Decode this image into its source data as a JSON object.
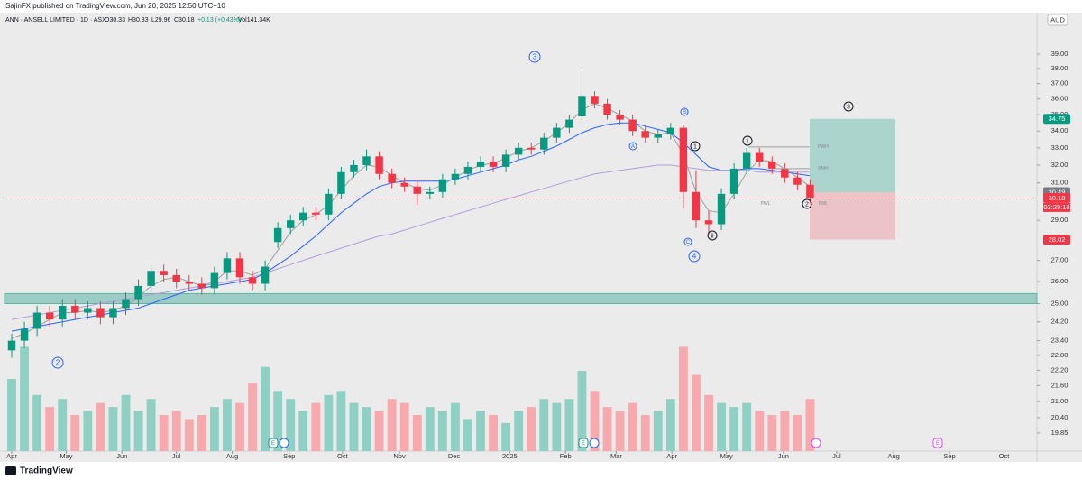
{
  "header": "SajinFX published on TradingView.com, Jun 20, 2025 12:50 UTC+10",
  "chart_data": {
    "type": "candlestick",
    "legend": {
      "symbol": "ANN · ANSELL LIMITED · 1D · ASX",
      "open": "O30.33",
      "high": "H30.33",
      "low": "L29.96",
      "close": "C30.18",
      "change": "+0.13 (+0.43%)",
      "volume": "Vol141.34K"
    },
    "currency": "AUD",
    "log_scale": true,
    "grid": false,
    "ylim": [
      19.22,
      41.99
    ],
    "yticks": [
      {
        "value": 39,
        "label": "39.00"
      },
      {
        "value": 38,
        "label": "38.00"
      },
      {
        "value": 37,
        "label": "37.00"
      },
      {
        "value": 36,
        "label": "36.00"
      },
      {
        "value": 35,
        "label": "35.00"
      },
      {
        "value": 34,
        "label": "34.00"
      },
      {
        "value": 33,
        "label": "33.00"
      },
      {
        "value": 32,
        "label": "32.00"
      },
      {
        "value": 31,
        "label": "31.00"
      },
      {
        "value": 29,
        "label": "29.00"
      },
      {
        "value": 27,
        "label": "27.00"
      },
      {
        "value": 26,
        "label": "26.00"
      },
      {
        "value": 25,
        "label": "25.00"
      },
      {
        "value": 24.2,
        "label": "24.20"
      },
      {
        "value": 23.4,
        "label": "23.40"
      },
      {
        "value": 22.8,
        "label": "22.80"
      },
      {
        "value": 22.2,
        "label": "22.20"
      },
      {
        "value": 21.6,
        "label": "21.60"
      },
      {
        "value": 21,
        "label": "21.00"
      },
      {
        "value": 20.4,
        "label": "20.40"
      },
      {
        "value": 19.85,
        "label": "19.85"
      }
    ],
    "xlim": [
      -0.57,
      80.9
    ],
    "xticks": [
      {
        "value": 0,
        "label": "Apr"
      },
      {
        "value": 4.3,
        "label": "May"
      },
      {
        "value": 8.7,
        "label": "Jun"
      },
      {
        "value": 13,
        "label": "Jul"
      },
      {
        "value": 17.4,
        "label": "Aug"
      },
      {
        "value": 21.9,
        "label": "Sep"
      },
      {
        "value": 26.1,
        "label": "Oct"
      },
      {
        "value": 30.6,
        "label": "Nov"
      },
      {
        "value": 34.9,
        "label": "Dec"
      },
      {
        "value": 39.3,
        "label": "2025"
      },
      {
        "value": 43.7,
        "label": "Feb"
      },
      {
        "value": 47.7,
        "label": "Mar"
      },
      {
        "value": 52.1,
        "label": "Apr"
      },
      {
        "value": 56.4,
        "label": "May"
      },
      {
        "value": 60.9,
        "label": "Jun"
      },
      {
        "value": 65.1,
        "label": "Jul"
      },
      {
        "value": 69.6,
        "label": "Aug"
      },
      {
        "value": 74,
        "label": "Sep"
      },
      {
        "value": 78.3,
        "label": "Oct"
      }
    ],
    "open": [
      23.0,
      23.4,
      23.9,
      24.6,
      24.3,
      24.9,
      24.6,
      24.8,
      24.4,
      24.8,
      25.2,
      25.8,
      26.5,
      26.3,
      26.0,
      25.9,
      25.7,
      26.4,
      27.1,
      26.2,
      25.9,
      27.9,
      28.6,
      29.0,
      29.4,
      29.3,
      30.4,
      31.6,
      32.0,
      32.5,
      31.5,
      31.0,
      30.8,
      30.4,
      30.5,
      31.2,
      31.5,
      31.9,
      32.2,
      31.9,
      32.6,
      33.0,
      32.9,
      33.6,
      34.2,
      34.9,
      36.2,
      35.7,
      35.0,
      34.7,
      34.0,
      33.6,
      33.8,
      34.2,
      30.5,
      29.0,
      28.8,
      30.4,
      31.8,
      32.7,
      32.2,
      31.8,
      31.3,
      30.9
    ],
    "high": [
      23.7,
      24.2,
      24.9,
      24.9,
      25.2,
      25.2,
      25.1,
      25.1,
      25.1,
      25.5,
      26.1,
      26.8,
      26.8,
      26.6,
      26.3,
      26.2,
      26.7,
      27.4,
      27.4,
      26.5,
      27.0,
      28.9,
      29.3,
      29.7,
      29.7,
      30.7,
      31.9,
      32.3,
      32.9,
      32.8,
      31.8,
      31.3,
      31.1,
      30.8,
      31.5,
      31.8,
      32.2,
      32.5,
      32.5,
      32.9,
      33.3,
      33.3,
      33.9,
      34.5,
      35.0,
      37.8,
      36.5,
      36.0,
      35.3,
      35.0,
      34.3,
      34.1,
      34.5,
      34.4,
      31.7,
      29.5,
      30.7,
      32.1,
      33.0,
      33.0,
      32.5,
      32.1,
      31.6,
      31.2
    ],
    "low": [
      22.7,
      23.1,
      23.6,
      24.0,
      24.0,
      24.3,
      24.3,
      24.1,
      24.1,
      24.5,
      24.9,
      25.5,
      26.0,
      25.7,
      25.6,
      25.4,
      25.4,
      26.1,
      25.9,
      25.6,
      25.6,
      27.6,
      28.3,
      28.7,
      29.0,
      29.0,
      30.1,
      31.3,
      31.7,
      31.2,
      30.7,
      30.5,
      29.8,
      30.1,
      30.2,
      30.9,
      31.2,
      31.6,
      31.6,
      31.6,
      32.3,
      32.6,
      32.6,
      33.3,
      33.9,
      34.6,
      35.4,
      34.7,
      34.4,
      33.7,
      33.3,
      33.3,
      33.5,
      29.6,
      28.6,
      28.3,
      28.5,
      30.1,
      31.5,
      31.9,
      31.5,
      31.0,
      30.6,
      29.9
    ],
    "close": [
      23.4,
      23.9,
      24.6,
      24.3,
      24.9,
      24.6,
      24.8,
      24.4,
      24.8,
      25.2,
      25.8,
      26.5,
      26.3,
      26.0,
      25.9,
      25.7,
      26.4,
      27.1,
      26.2,
      25.9,
      26.7,
      28.6,
      29.0,
      29.4,
      29.3,
      30.4,
      31.6,
      32.0,
      32.5,
      31.5,
      31.0,
      30.8,
      30.4,
      30.5,
      31.2,
      31.5,
      31.9,
      32.2,
      31.9,
      32.6,
      33.0,
      32.9,
      33.6,
      34.2,
      34.7,
      36.2,
      35.7,
      35.0,
      34.7,
      34.0,
      33.6,
      33.8,
      34.2,
      30.5,
      29.0,
      28.8,
      30.4,
      31.8,
      32.7,
      32.2,
      31.8,
      31.3,
      30.9,
      30.2
    ],
    "up_color": "#089981",
    "down_color": "#f23645",
    "volume": {
      "values": [
        1800,
        2600,
        1400,
        1100,
        1300,
        900,
        1000,
        1200,
        1100,
        1400,
        1000,
        1300,
        900,
        1000,
        800,
        900,
        1100,
        1300,
        1200,
        1700,
        2100,
        1500,
        1300,
        1000,
        1200,
        1400,
        1500,
        1200,
        1100,
        1000,
        1300,
        1200,
        900,
        1100,
        1000,
        1200,
        800,
        1000,
        900,
        700,
        1000,
        1100,
        1300,
        1200,
        1300,
        2000,
        1500,
        1100,
        1000,
        1200,
        900,
        1000,
        1300,
        2600,
        1900,
        1400,
        1200,
        1100,
        1200,
        1000,
        900,
        1000,
        900,
        1300
      ],
      "lim": [
        0,
        4500
      ],
      "up_color": "#8fd0c5",
      "down_color": "#f7a9ae"
    },
    "ma": [
      {
        "color": "#9e9e9e",
        "values": [
          23.5,
          23.7,
          24.0,
          24.3,
          24.6,
          24.6,
          24.7,
          24.6,
          24.7,
          24.9,
          25.3,
          25.8,
          26.1,
          26.2,
          26.0,
          25.8,
          26.0,
          26.5,
          26.5,
          26.3,
          26.6,
          27.5,
          28.4,
          29.0,
          29.3,
          29.8,
          30.6,
          31.4,
          32.0,
          31.9,
          31.4,
          31.0,
          30.7,
          30.6,
          30.9,
          31.3,
          31.7,
          32.0,
          32.1,
          32.4,
          32.8,
          33.0,
          33.4,
          33.9,
          34.5,
          35.3,
          35.7,
          35.4,
          35.0,
          34.6,
          34.0,
          33.8,
          33.9,
          32.6,
          30.5,
          29.5,
          29.4,
          30.4,
          31.6,
          32.3,
          32.2,
          31.8,
          31.3,
          30.8
        ]
      },
      {
        "color": "#2962ff",
        "values": [
          23.8,
          23.9,
          24.0,
          24.1,
          24.2,
          24.3,
          24.4,
          24.5,
          24.6,
          24.7,
          24.8,
          25.0,
          25.2,
          25.4,
          25.6,
          25.7,
          25.8,
          25.9,
          26.0,
          26.1,
          26.4,
          26.8,
          27.2,
          27.7,
          28.2,
          28.8,
          29.4,
          29.9,
          30.4,
          30.8,
          31.0,
          31.1,
          31.1,
          31.1,
          31.1,
          31.2,
          31.4,
          31.6,
          31.8,
          32.0,
          32.3,
          32.5,
          32.8,
          33.1,
          33.5,
          33.9,
          34.2,
          34.4,
          34.5,
          34.5,
          34.3,
          34.1,
          33.9,
          33.3,
          32.6,
          31.9,
          31.7,
          31.7,
          31.8,
          31.8,
          31.7,
          31.6,
          31.5,
          31.4
        ]
      },
      {
        "color": "#b39ddb",
        "values": [
          24.3,
          24.4,
          24.5,
          24.6,
          24.7,
          24.8,
          24.9,
          25.0,
          25.1,
          25.2,
          25.3,
          25.4,
          25.5,
          25.6,
          25.7,
          25.8,
          25.9,
          26.0,
          26.1,
          26.2,
          26.4,
          26.6,
          26.8,
          27.0,
          27.2,
          27.4,
          27.6,
          27.8,
          28.0,
          28.2,
          28.3,
          28.5,
          28.7,
          28.9,
          29.1,
          29.3,
          29.5,
          29.7,
          29.9,
          30.1,
          30.3,
          30.5,
          30.7,
          30.9,
          31.1,
          31.3,
          31.5,
          31.6,
          31.7,
          31.8,
          31.9,
          32.0,
          32.0,
          31.9,
          31.8,
          31.7,
          31.7,
          31.7,
          31.7,
          31.6,
          31.6,
          31.6,
          31.6,
          31.6
        ]
      }
    ],
    "zone": {
      "low": 25.0,
      "high": 25.45,
      "color": "#5bb5a6"
    },
    "last": {
      "price": 30.18,
      "countdown": "03:29:18"
    },
    "position": {
      "target": 34.75,
      "entry": 30.49,
      "stop": 28.02
    },
    "levels": [
      {
        "label": "PWH",
        "price": 33.05
      },
      {
        "label": "PMH",
        "price": 31.8
      },
      {
        "label": "PWL",
        "price": 29.87
      },
      {
        "label": "PML",
        "price": 29.87
      }
    ],
    "waves": [
      {
        "label": "3"
      },
      {
        "label": "2"
      },
      {
        "label": "4"
      },
      {
        "label": "A"
      },
      {
        "label": "B"
      },
      {
        "label": "C"
      },
      {
        "label": "1"
      },
      {
        "label": "ii"
      },
      {
        "label": "1"
      },
      {
        "label": "2"
      },
      {
        "label": "3"
      }
    ],
    "events": [
      "E",
      "E",
      "E"
    ]
  },
  "footer": "TradingView"
}
